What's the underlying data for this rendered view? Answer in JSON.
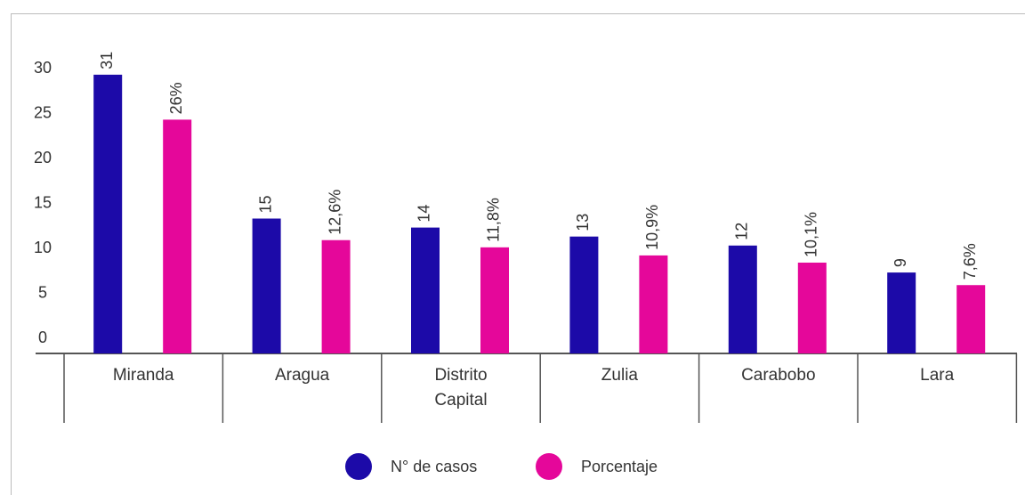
{
  "chart_data": {
    "type": "bar",
    "categories": [
      "Miranda",
      "Aragua",
      "Distrito Capital",
      "Zulia",
      "Carabobo",
      "Lara"
    ],
    "series": [
      {
        "name": "N° de casos",
        "color": "#1c0aa8",
        "values": [
          31,
          15,
          14,
          13,
          12,
          9
        ]
      },
      {
        "name": "Porcentaje",
        "color": "#e5079a",
        "values": [
          26,
          12.6,
          11.8,
          10.9,
          10.1,
          7.6
        ],
        "value_labels": [
          "26%",
          "12,6%",
          "11,8%",
          "10,9%",
          "10,1%",
          "7,6%"
        ]
      }
    ],
    "ylim": [
      0,
      32
    ],
    "yticks": [
      0,
      5,
      10,
      15,
      20,
      25,
      30
    ],
    "grid": false,
    "legend": "bottom"
  }
}
